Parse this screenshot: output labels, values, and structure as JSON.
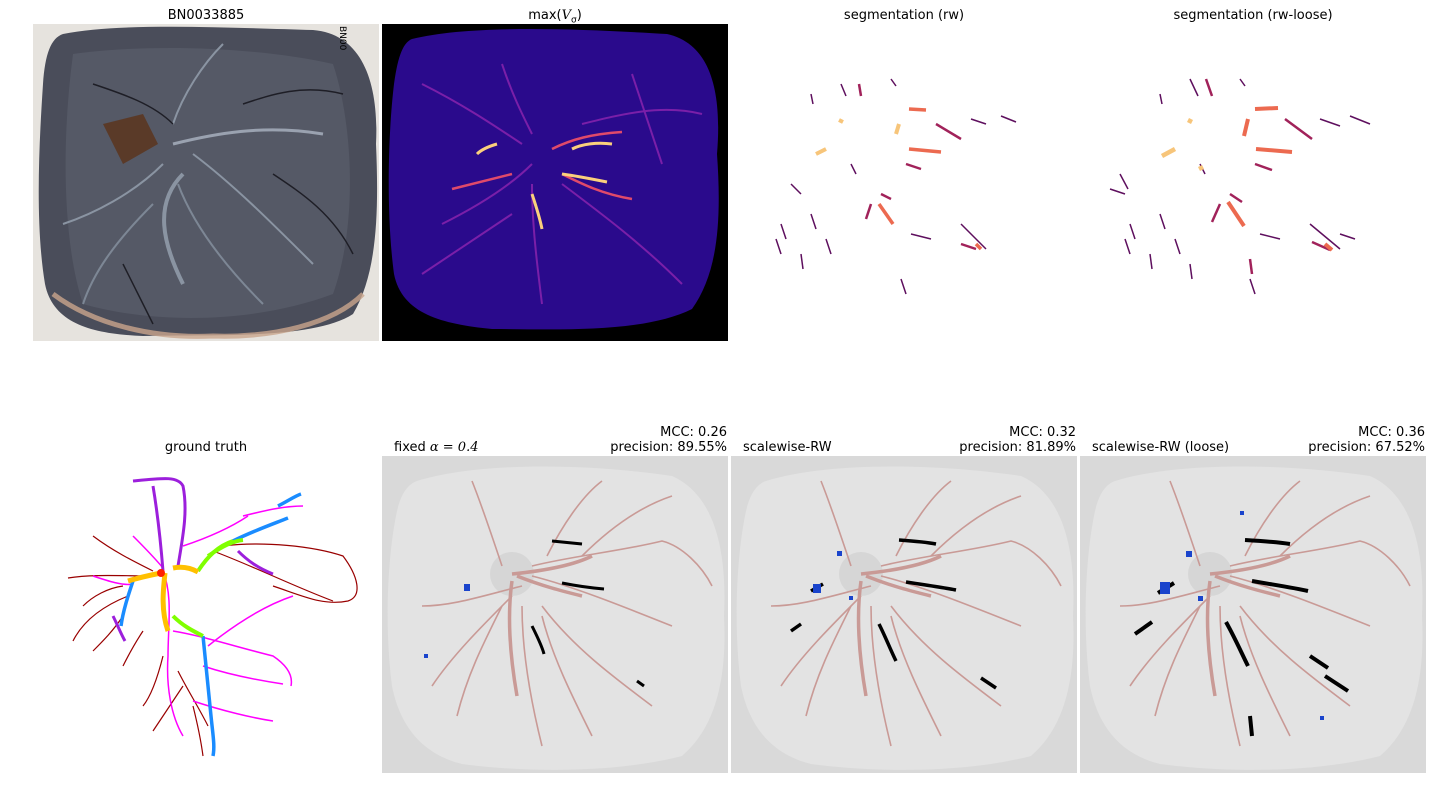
{
  "figure": {
    "panels": [
      {
        "id": "photo",
        "title": "BN0033885",
        "side_label": "BN00"
      },
      {
        "id": "vesselness",
        "title_prefix": "max(",
        "title_var": "V",
        "title_sub": "σ",
        "title_suffix": ")"
      },
      {
        "id": "seg-rw",
        "title": "segmentation (rw)"
      },
      {
        "id": "seg-rw-loose",
        "title": "segmentation (rw-loose)"
      },
      {
        "id": "ground-truth",
        "title": "ground truth"
      },
      {
        "id": "fixed",
        "label_prefix": "fixed ",
        "label_alpha": "α = 0.4",
        "mcc": "MCC: 0.26",
        "precision": "precision: 89.55%"
      },
      {
        "id": "scalewise",
        "label": "scalewise-RW",
        "mcc": "MCC: 0.32",
        "precision": "precision: 81.89%"
      },
      {
        "id": "scalewise-loose",
        "label": "scalewise-RW (loose)",
        "mcc": "MCC: 0.36",
        "precision": "precision: 67.52%"
      }
    ]
  },
  "colors": {
    "photo_bg": "#e6e3de",
    "tissue": "#4d505c",
    "vessel_map_bg": "#000000",
    "vessel_map_tissue": "#2a0a8c",
    "seg_low": "#5e0f5e",
    "seg_high": "#f7c57a",
    "gt_red": "#990000",
    "gt_magenta": "#ff00ff",
    "gt_blue": "#1a8cff",
    "gt_green": "#80ff00",
    "gt_orange": "#ffc000",
    "gt_purple": "#9c1fdc",
    "overlay_bg": "#d9d9d9",
    "overlay_disc": "#e3e3e3",
    "overlay_vessel": "#c99a96",
    "overlay_true": "#000000",
    "overlay_false": "#1a44cc"
  }
}
